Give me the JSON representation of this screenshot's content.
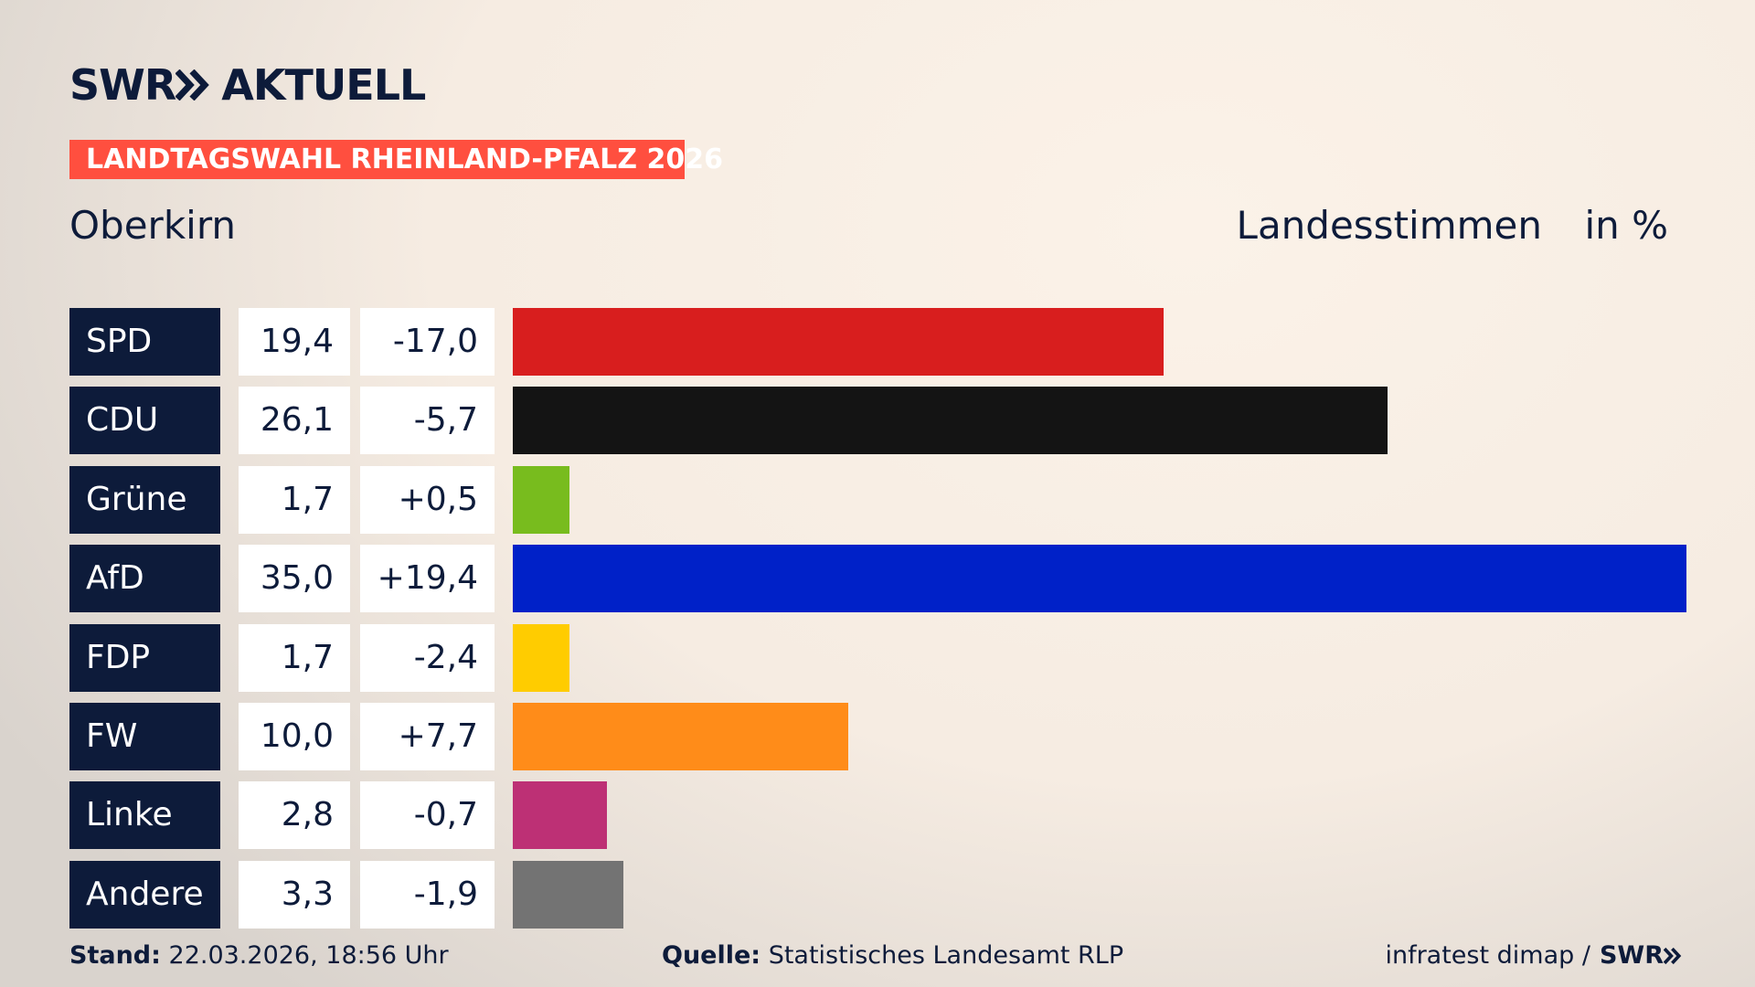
{
  "header": {
    "brand": "SWR",
    "brand_section": "AKTUELL"
  },
  "chart_data": {
    "type": "bar",
    "orientation": "horizontal",
    "title": "LANDTAGSWAHL RHEINLAND-PFALZ 2026",
    "subtitle": "Oberkirn",
    "measure_label": "Landesstimmen",
    "unit_label": "in %",
    "categories": [
      "SPD",
      "CDU",
      "Grüne",
      "AfD",
      "FDP",
      "FW",
      "Linke",
      "Andere"
    ],
    "values": [
      19.4,
      26.1,
      1.7,
      35.0,
      1.7,
      10.0,
      2.8,
      3.3
    ],
    "value_labels": [
      "19,4",
      "26,1",
      "1,7",
      "35,0",
      "1,7",
      "10,0",
      "2,8",
      "3,3"
    ],
    "changes": [
      -17.0,
      -5.7,
      0.5,
      19.4,
      -2.4,
      7.7,
      -0.7,
      -1.9
    ],
    "change_labels": [
      "-17,0",
      "-5,7",
      "+0,5",
      "+19,4",
      "-2,4",
      "+7,7",
      "-0,7",
      "-1,9"
    ],
    "colors": [
      "#d81e1e",
      "#141414",
      "#78bc1e",
      "#0021c8",
      "#ffcc00",
      "#ff8c19",
      "#bd3075",
      "#737373"
    ]
  },
  "footer": {
    "stand_label": "Stand:",
    "stand": "22.03.2026, 18:56 Uhr",
    "source_label": "Quelle:",
    "source": "Statistisches Landesamt RLP",
    "credit": "infratest dimap /"
  }
}
